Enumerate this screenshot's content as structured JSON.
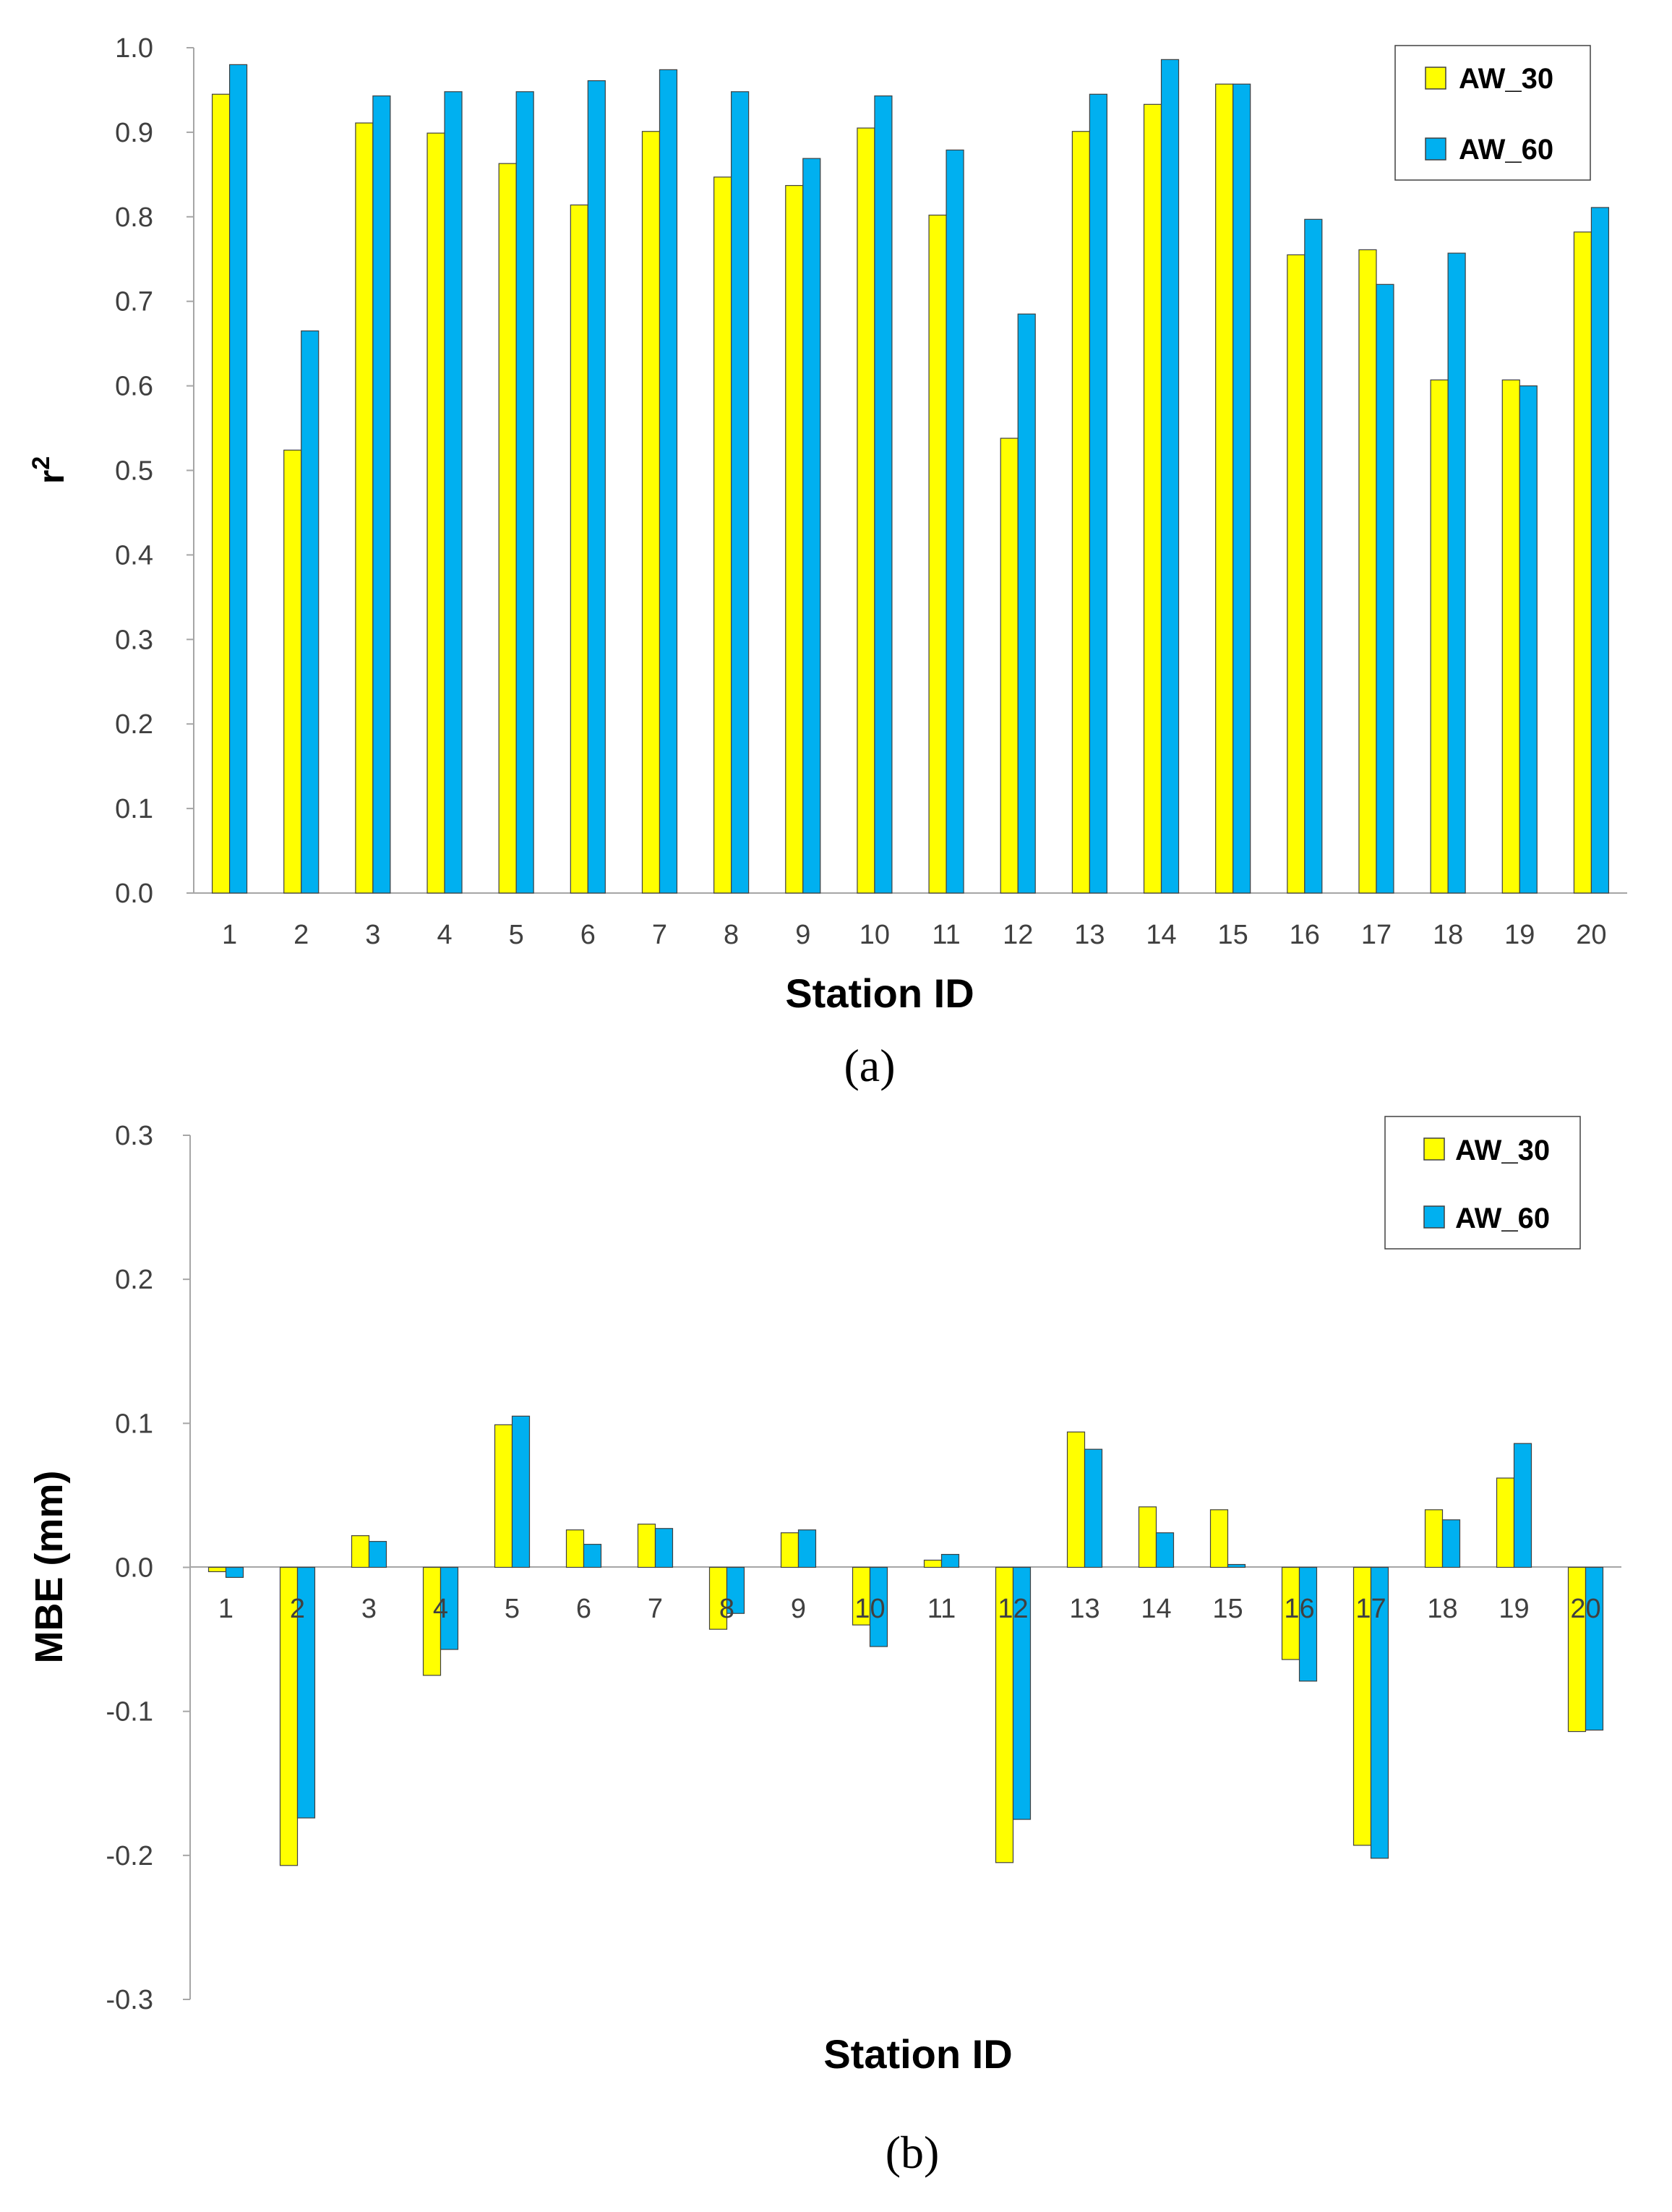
{
  "colors": {
    "AW_30": "#FFFF00",
    "AW_60": "#00B0F0",
    "bar_stroke": "#404040",
    "axis": "#A6A6A6"
  },
  "chart_data": [
    {
      "type": "bar",
      "panel_label": "(a)",
      "title": "",
      "xlabel": "Station ID",
      "ylabel_base": "r",
      "ylabel_sup": "2",
      "ylim": [
        0,
        1.0
      ],
      "ytick_step": 0.1,
      "ytick_decimals": 1,
      "categories": [
        "1",
        "2",
        "3",
        "4",
        "5",
        "6",
        "7",
        "8",
        "9",
        "10",
        "11",
        "12",
        "13",
        "14",
        "15",
        "16",
        "17",
        "18",
        "19",
        "20"
      ],
      "legend": {
        "position": "top-right",
        "entries": [
          "AW_30",
          "AW_60"
        ]
      },
      "series": [
        {
          "name": "AW_30",
          "values": [
            0.945,
            0.524,
            0.911,
            0.899,
            0.863,
            0.814,
            0.901,
            0.847,
            0.837,
            0.905,
            0.802,
            0.538,
            0.901,
            0.933,
            0.957,
            0.755,
            0.761,
            0.607,
            0.607,
            0.782
          ]
        },
        {
          "name": "AW_60",
          "values": [
            0.98,
            0.665,
            0.943,
            0.948,
            0.948,
            0.961,
            0.974,
            0.948,
            0.869,
            0.943,
            0.879,
            0.685,
            0.945,
            0.986,
            0.957,
            0.797,
            0.72,
            0.757,
            0.6,
            0.811
          ]
        }
      ]
    },
    {
      "type": "bar",
      "panel_label": "(b)",
      "title": "",
      "xlabel": "Station ID",
      "ylabel": "MBE (mm)",
      "ylim": [
        -0.3,
        0.3
      ],
      "ytick_step": 0.1,
      "ytick_decimals": 1,
      "categories": [
        "1",
        "2",
        "3",
        "4",
        "5",
        "6",
        "7",
        "8",
        "9",
        "10",
        "11",
        "12",
        "13",
        "14",
        "15",
        "16",
        "17",
        "18",
        "19",
        "20"
      ],
      "legend": {
        "position": "top-right",
        "entries": [
          "AW_30",
          "AW_60"
        ]
      },
      "series": [
        {
          "name": "AW_30",
          "values": [
            -0.003,
            -0.207,
            0.022,
            -0.075,
            0.099,
            0.026,
            0.03,
            -0.043,
            0.024,
            -0.04,
            0.005,
            -0.205,
            0.094,
            0.042,
            0.04,
            -0.064,
            -0.193,
            0.04,
            0.062,
            -0.114
          ]
        },
        {
          "name": "AW_60",
          "values": [
            -0.007,
            -0.174,
            0.018,
            -0.057,
            0.105,
            0.016,
            0.027,
            -0.032,
            0.026,
            -0.055,
            0.009,
            -0.175,
            0.082,
            0.024,
            0.002,
            -0.079,
            -0.202,
            0.033,
            0.086,
            -0.113
          ]
        }
      ]
    }
  ]
}
